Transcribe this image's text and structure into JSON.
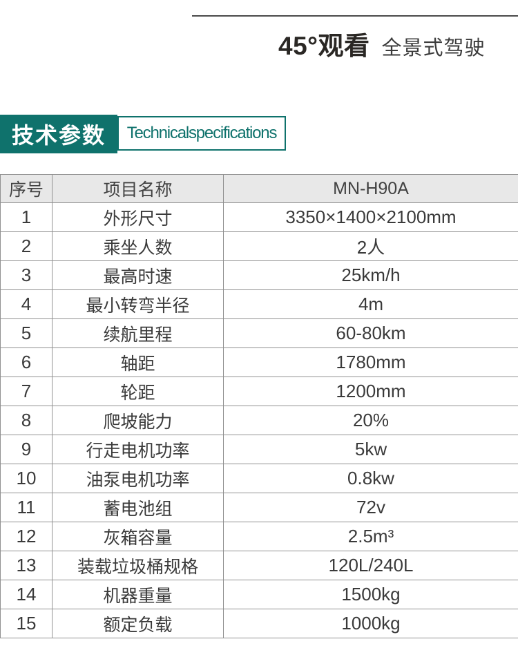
{
  "title": {
    "main": "45°观看",
    "sub": "全景式驾驶"
  },
  "section": {
    "zh": "技术参数",
    "en": "Technicalspecifications"
  },
  "table": {
    "columns": [
      "序号",
      "项目名称",
      "MN-H90A"
    ],
    "rows": [
      {
        "no": "1",
        "name": "外形尺寸",
        "value": "3350×1400×2100mm"
      },
      {
        "no": "2",
        "name": "乘坐人数",
        "value": "2人"
      },
      {
        "no": "3",
        "name": "最高时速",
        "value": "25km/h"
      },
      {
        "no": "4",
        "name": "最小转弯半径",
        "value": "4m"
      },
      {
        "no": "5",
        "name": "续航里程",
        "value": "60-80km"
      },
      {
        "no": "6",
        "name": "轴距",
        "value": "1780mm"
      },
      {
        "no": "7",
        "name": "轮距",
        "value": "1200mm"
      },
      {
        "no": "8",
        "name": "爬坡能力",
        "value": "20%"
      },
      {
        "no": "9",
        "name": "行走电机功率",
        "value": "5kw"
      },
      {
        "no": "10",
        "name": "油泵电机功率",
        "value": "0.8kw"
      },
      {
        "no": "11",
        "name": "蓄电池组",
        "value": "72v"
      },
      {
        "no": "12",
        "name": "灰箱容量",
        "value": "2.5m³"
      },
      {
        "no": "13",
        "name": "装载垃圾桶规格",
        "value": "120L/240L"
      },
      {
        "no": "14",
        "name": "机器重量",
        "value": "1500kg"
      },
      {
        "no": "15",
        "name": "额定负载",
        "value": "1000kg"
      }
    ]
  },
  "colors": {
    "teal": "#0f726c",
    "table-border": "#909090",
    "header-bg": "#e8e8e8",
    "text": "#3a3a3a",
    "rule": "#4a4a4a"
  }
}
